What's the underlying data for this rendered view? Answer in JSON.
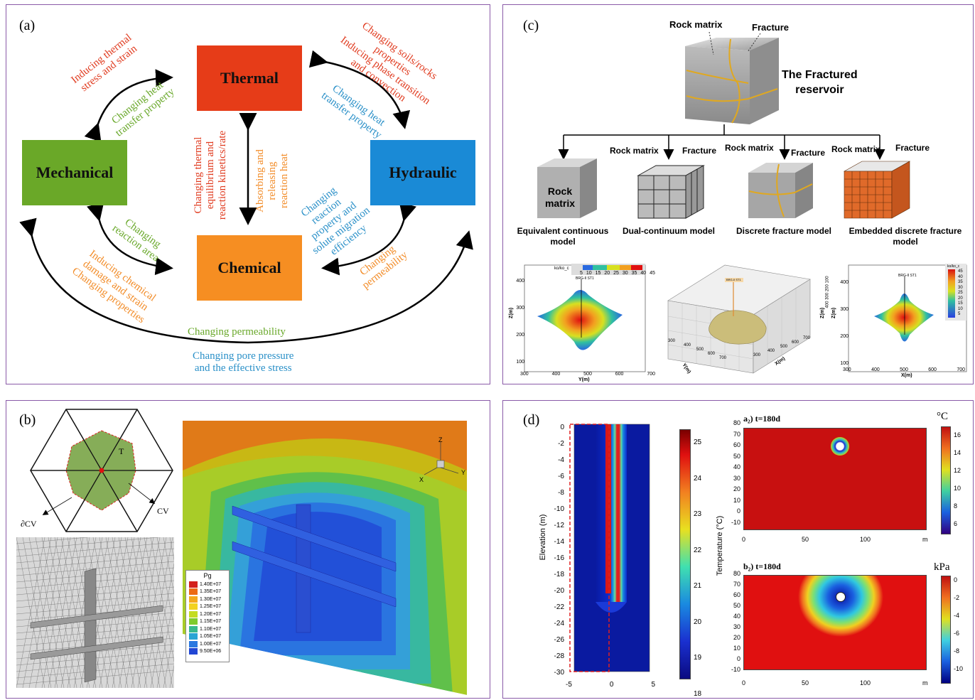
{
  "colors": {
    "thermal": "#e63c18",
    "hydraulic": "#1a8ad6",
    "mechanical": "#6aa828",
    "chemical": "#f68e22",
    "border": "#8a5aa8",
    "red": "#e03a1e",
    "green": "#69a82a",
    "blue": "#2a90c8",
    "orange": "#f28c28"
  },
  "panel_a": {
    "label": "(a)",
    "thermal": "Thermal",
    "hydraulic": "Hydraulic",
    "mechanical": "Mechanical",
    "chemical": "Chemical",
    "mt_red": [
      "Inducing thermal",
      "stress and strain"
    ],
    "mt_green": [
      "Changing heat",
      "transfer property"
    ],
    "th_red": [
      "Changing soils/rocks",
      "properties",
      "Inducing phase transition",
      "and convection"
    ],
    "th_blue": [
      "Changing heat",
      "transfer property"
    ],
    "tc_red": [
      "Changing thermal",
      "equilibrium and",
      "reaction kinetics/rate"
    ],
    "tc_orange": [
      "Absorbing and",
      "releasing",
      "reaction heat"
    ],
    "hc_blue": [
      "Changing",
      "reaction",
      "property and",
      "solute migration",
      "efficiency"
    ],
    "hc_orange": [
      "Changing",
      "permeability"
    ],
    "mc_green": [
      "Changing",
      "reaction area"
    ],
    "mc_orange": [
      "Inducing chemical",
      "damage and strain",
      "Changing properties"
    ],
    "mh_green": "Changing permeability",
    "mh_blue": [
      "Changing pore pressure",
      "and the effective stress"
    ]
  },
  "panel_b": {
    "label": "(b)",
    "t_label": "T",
    "cv_label": "CV",
    "dcv_label": "∂CV",
    "axes": {
      "z": "Z",
      "x": "X",
      "y": "Y"
    },
    "legend_title": "Pg",
    "legend": [
      "1.40E+07",
      "1.35E+07",
      "1.30E+07",
      "1.25E+07",
      "1.20E+07",
      "1.15E+07",
      "1.10E+07",
      "1.05E+07",
      "1.00E+07",
      "9.50E+06"
    ],
    "legend_colors": [
      "#d3201c",
      "#ec6a14",
      "#f4a81c",
      "#f2d21e",
      "#c4dc20",
      "#7ecb2c",
      "#38b98c",
      "#28a4d4",
      "#2a78e0",
      "#2146d4"
    ]
  },
  "panel_c": {
    "label": "(c)",
    "top_rock": "Rock matrix",
    "top_fracture": "Fracture",
    "title": [
      "The Fractured",
      "reservoir"
    ],
    "models": [
      {
        "name": [
          "Equivalent continuous",
          "model"
        ],
        "box": [
          "Rock",
          "matrix"
        ]
      },
      {
        "name": [
          "Dual-continuum model"
        ],
        "rock": "Rock matrix",
        "fracture": "Fracture"
      },
      {
        "name": [
          "Discrete fracture model"
        ],
        "rock": "Rock matrix",
        "fracture": "Fracture"
      },
      {
        "name": [
          "Embedded discrete fracture",
          "model"
        ],
        "rock": "Rock matrix",
        "fracture": "Fracture"
      }
    ],
    "plot1": {
      "ylabel": "Z(m)",
      "xlabel": "Y(m)",
      "yticks": [
        "400",
        "300",
        "200",
        "100"
      ],
      "xticks": [
        "300",
        "400",
        "500",
        "600",
        "700"
      ],
      "cb_label": "ko/ko_c",
      "cb_ticks": [
        "5",
        "10",
        "15",
        "20",
        "25",
        "30",
        "35",
        "40",
        "45"
      ],
      "well": "BRG-II ST1"
    },
    "plot2": {
      "well": "BRG-II ST1",
      "xlabel": "Y(m)",
      "zlabel": "Z(m)",
      "xlabel2": "X(m)",
      "ticks_left": [
        "300",
        "400",
        "500",
        "600",
        "700"
      ],
      "ticks_right": [
        "300",
        "400",
        "500",
        "600",
        "700"
      ],
      "ticks_z": [
        "400",
        "300",
        "200",
        "100"
      ]
    },
    "plot3": {
      "ylabel": "Z(m)",
      "xlabel": "X(m)",
      "yticks": [
        "400",
        "300",
        "200",
        "100"
      ],
      "xticks": [
        "300",
        "400",
        "500",
        "600",
        "700"
      ],
      "cb_label": "ko/ko_c",
      "cb_ticks": [
        "45",
        "40",
        "35",
        "30",
        "25",
        "20",
        "15",
        "10",
        "5"
      ],
      "well": "BRG-II ST1"
    }
  },
  "panel_d": {
    "label": "(d)",
    "col_ylabel": "Elevation (m)",
    "col_yticks": [
      "0",
      "-2",
      "-4",
      "-6",
      "-8",
      "-10",
      "-12",
      "-14",
      "-16",
      "-18",
      "-20",
      "-22",
      "-24",
      "-26",
      "-28",
      "-30"
    ],
    "col_xticks": [
      "-5",
      "0",
      "5"
    ],
    "cb_label": "Temperature (°C)",
    "cb_ticks": [
      "25",
      "24",
      "23",
      "22",
      "21",
      "20",
      "19",
      "18"
    ],
    "a2": {
      "title": "a₂) t=180d",
      "unit": "°C",
      "yticks": [
        "80",
        "70",
        "60",
        "50",
        "40",
        "30",
        "20",
        "10",
        "0",
        "-10"
      ],
      "xticks": [
        "0",
        "50",
        "100",
        "m"
      ],
      "cb_ticks": [
        "16",
        "14",
        "12",
        "10",
        "8",
        "6"
      ]
    },
    "b2": {
      "title": "b₂) t=180d",
      "unit": "kPa",
      "yticks": [
        "80",
        "70",
        "60",
        "50",
        "40",
        "30",
        "20",
        "10",
        "0",
        "-10"
      ],
      "xticks": [
        "0",
        "50",
        "100",
        "m"
      ],
      "cb_ticks": [
        "0",
        "-2",
        "-4",
        "-6",
        "-8",
        "-10"
      ]
    }
  }
}
